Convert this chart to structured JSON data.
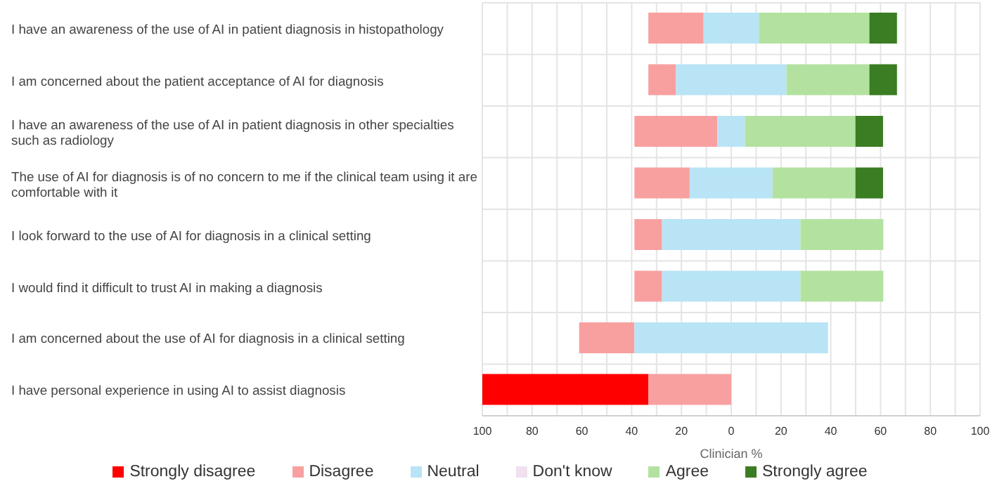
{
  "chart_data": {
    "type": "bar",
    "orientation": "horizontal",
    "xlabel": "Clinician %",
    "categories": [
      "I have an awareness of the use of AI in patient diagnosis in histopathology",
      "I am concerned about the patient acceptance of AI for diagnosis",
      "I have an awareness of the use of AI in patient diagnosis in other specialties such as radiology",
      "The use of AI for diagnosis is of no concern to me if the clinical team using it are comfortable with it",
      "I look forward to the use of AI for diagnosis in a clinical setting",
      "I would find it difficult to trust AI in making a diagnosis",
      "I am concerned about the use of AI for diagnosis in a clinical setting",
      "I have personal experience in using AI to assist diagnosis"
    ],
    "series": [
      {
        "name": "Strongly disagree",
        "color": "#ff0000",
        "values": [
          0,
          0,
          0,
          0,
          0,
          0,
          0,
          66.7
        ],
        "base": [
          null,
          null,
          null,
          null,
          null,
          null,
          null,
          -100
        ]
      },
      {
        "name": "Disagree",
        "color": "#f8a0a0",
        "values": [
          22.2,
          11.1,
          33.3,
          22.2,
          11.1,
          11.1,
          22.2,
          33.3
        ],
        "base": [
          -33.3,
          -33.3,
          -38.9,
          -38.9,
          -38.9,
          -38.9,
          -61.1,
          -33.3
        ]
      },
      {
        "name": "Neutral",
        "color": "#b8e4f6",
        "values": [
          22.2,
          44.4,
          11.1,
          33.3,
          55.6,
          55.6,
          77.8,
          0
        ],
        "base": [
          -11.1,
          -22.2,
          -5.6,
          -16.7,
          -27.8,
          -27.8,
          -38.9,
          null
        ]
      },
      {
        "name": "Don't know",
        "color": "#f0e0f0",
        "values": [
          0,
          0,
          0,
          0,
          0,
          0,
          0,
          0
        ]
      },
      {
        "name": "Agree",
        "color": "#b3e2a0",
        "values": [
          44.4,
          33.3,
          44.4,
          33.3,
          33.3,
          33.3,
          0,
          0
        ],
        "base": [
          11.1,
          22.2,
          5.5,
          16.6,
          27.8,
          27.8,
          null,
          null
        ]
      },
      {
        "name": "Strongly agree",
        "color": "#3a7d22",
        "values": [
          11.1,
          11.1,
          11.1,
          11.1,
          0,
          0,
          0,
          0
        ],
        "base": [
          55.5,
          55.5,
          49.9,
          49.9,
          null,
          null,
          null,
          null
        ]
      }
    ],
    "xlim": [
      -100,
      100
    ],
    "xticks": [
      {
        "value": -100,
        "label": "100"
      },
      {
        "value": -90,
        "label": null
      },
      {
        "value": -80,
        "label": "80"
      },
      {
        "value": -70,
        "label": null
      },
      {
        "value": -60,
        "label": "60"
      },
      {
        "value": -50,
        "label": null
      },
      {
        "value": -40,
        "label": "40"
      },
      {
        "value": -30,
        "label": null
      },
      {
        "value": -20,
        "label": "20"
      },
      {
        "value": -10,
        "label": null
      },
      0,
      {
        "value": 10,
        "label": null
      },
      20,
      {
        "value": 30,
        "label": null
      },
      40,
      {
        "value": 50,
        "label": null
      },
      60,
      {
        "value": 70,
        "label": null
      },
      80,
      {
        "value": 90,
        "label": null
      },
      100
    ],
    "grid": true,
    "legend": "bottom"
  }
}
